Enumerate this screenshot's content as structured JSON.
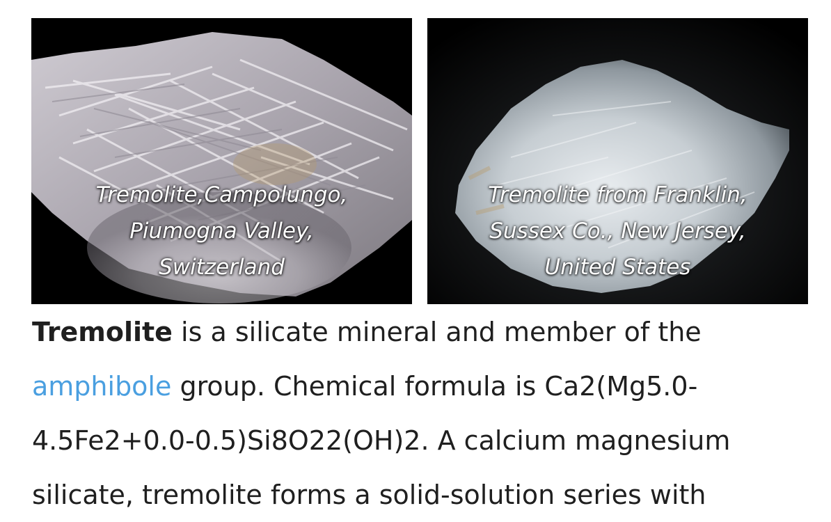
{
  "gallery": {
    "images": [
      {
        "caption_lines": [
          "Tremolite,Campolungo,",
          "Piumogna Valley,",
          "Switzerland"
        ]
      },
      {
        "caption_lines": [
          "Tremolite from Franklin,",
          "Sussex Co., New Jersey,",
          "United States"
        ]
      }
    ]
  },
  "article": {
    "term": "Tremolite",
    "line1_rest": " is a silicate mineral and member of the",
    "link_text": "amphibole",
    "line2_rest": " group. Chemical formula is Ca2(Mg5.0-",
    "line3": "4.5Fe2+0.0-0.5)Si8O22(OH)2. A calcium magnesium",
    "line4": "silicate, tremolite forms a solid-solution series with"
  }
}
